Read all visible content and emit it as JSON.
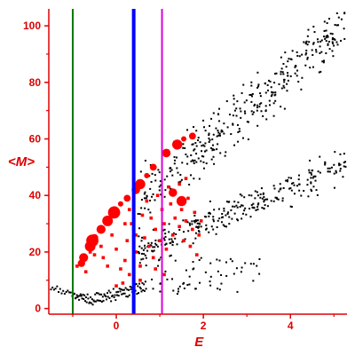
{
  "chart_data": {
    "type": "scatter",
    "title": "",
    "xlabel": "E",
    "ylabel": "<M>",
    "xlim": [
      -1.55,
      5.3
    ],
    "ylim": [
      -2,
      106
    ],
    "x_ticks": [
      0,
      2,
      4
    ],
    "y_ticks": [
      0,
      20,
      40,
      60,
      80,
      100
    ],
    "grid": false,
    "legend": "none",
    "colors": {
      "axis": "#dd0000",
      "black_points": "#000000",
      "red_points": "#ff0000",
      "line_green": "#007700",
      "line_blue": "#0000ff",
      "line_magenta": "#dd00dd"
    },
    "vertical_lines": [
      {
        "x": -1.0,
        "color": "#007700"
      },
      {
        "x": 0.4,
        "color": "#0000ff"
      },
      {
        "x": 1.05,
        "color": "#dd00dd"
      }
    ],
    "series": [
      {
        "kind": "large-red",
        "color": "#ff0000",
        "points": [
          [
            -0.8,
            16
          ],
          [
            -0.75,
            18
          ],
          [
            -0.6,
            22
          ],
          [
            -0.55,
            24
          ],
          [
            -0.5,
            25
          ],
          [
            -0.35,
            28
          ],
          [
            -0.2,
            31
          ],
          [
            -0.05,
            34
          ],
          [
            0.1,
            37
          ],
          [
            0.25,
            39
          ],
          [
            0.45,
            42
          ],
          [
            0.55,
            44
          ],
          [
            0.7,
            47
          ],
          [
            0.85,
            50
          ],
          [
            1.15,
            55
          ],
          [
            1.4,
            58
          ],
          [
            1.55,
            60
          ],
          [
            1.75,
            61
          ],
          [
            1.3,
            41
          ],
          [
            1.5,
            38
          ]
        ]
      },
      {
        "kind": "small-red",
        "color": "#ff0000",
        "points": [
          [
            -0.9,
            15
          ],
          [
            -0.7,
            13
          ],
          [
            -0.6,
            20
          ],
          [
            -0.5,
            19
          ],
          [
            -0.35,
            22
          ],
          [
            -0.3,
            18
          ],
          [
            -0.2,
            15
          ],
          [
            -0.1,
            26
          ],
          [
            0.0,
            21
          ],
          [
            0.1,
            14
          ],
          [
            0.15,
            9
          ],
          [
            0.2,
            17
          ],
          [
            0.25,
            24
          ],
          [
            0.3,
            12
          ],
          [
            0.35,
            30
          ],
          [
            0.4,
            28
          ],
          [
            0.45,
            20
          ],
          [
            0.55,
            15
          ],
          [
            0.6,
            33
          ],
          [
            0.65,
            25
          ],
          [
            0.7,
            38
          ],
          [
            0.75,
            22
          ],
          [
            0.8,
            32
          ],
          [
            0.85,
            18
          ],
          [
            0.9,
            28
          ],
          [
            0.95,
            40
          ],
          [
            1.0,
            24
          ],
          [
            1.05,
            35
          ],
          [
            1.1,
            30
          ],
          [
            1.15,
            21
          ],
          [
            1.2,
            43
          ],
          [
            1.25,
            37
          ],
          [
            1.3,
            26
          ],
          [
            1.35,
            32
          ],
          [
            1.45,
            29
          ],
          [
            1.5,
            35
          ],
          [
            1.55,
            24
          ],
          [
            1.6,
            31
          ],
          [
            1.65,
            39
          ],
          [
            1.7,
            22
          ],
          [
            1.75,
            28
          ],
          [
            1.8,
            34
          ],
          [
            1.85,
            19
          ],
          [
            1.9,
            26
          ],
          [
            1.95,
            31
          ],
          [
            0.0,
            8
          ],
          [
            0.55,
            10
          ],
          [
            0.3,
            35
          ],
          [
            1.45,
            44
          ],
          [
            1.6,
            46
          ],
          [
            0.2,
            30
          ],
          [
            0.9,
            14
          ],
          [
            1.1,
            12
          ],
          [
            0.45,
            26
          ]
        ]
      }
    ]
  }
}
